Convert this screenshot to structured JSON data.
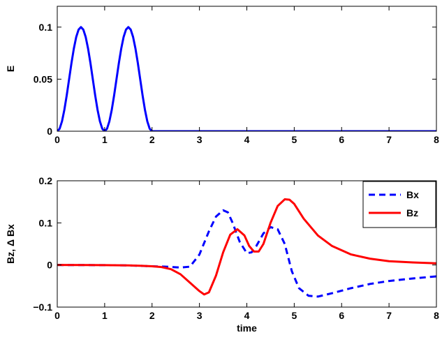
{
  "chart_data": [
    {
      "type": "line",
      "ylabel": "E",
      "xlim": [
        0,
        8
      ],
      "ylim": [
        0,
        0.12
      ],
      "xticks": [
        "0",
        "1",
        "2",
        "3",
        "4",
        "5",
        "6",
        "7",
        "8"
      ],
      "yticks": [
        "0",
        "0.05",
        "0.1"
      ],
      "ytick_values": [
        0,
        0.05,
        0.1
      ],
      "grid": false,
      "series": [
        {
          "color": "#0000ff",
          "style": "solid",
          "x": [
            0,
            0.05,
            0.1,
            0.15,
            0.2,
            0.25,
            0.3,
            0.35,
            0.4,
            0.45,
            0.5,
            0.55,
            0.6,
            0.65,
            0.7,
            0.75,
            0.8,
            0.85,
            0.9,
            0.95,
            1.0,
            1.05,
            1.1,
            1.15,
            1.2,
            1.25,
            1.3,
            1.35,
            1.4,
            1.45,
            1.5,
            1.55,
            1.6,
            1.65,
            1.7,
            1.75,
            1.8,
            1.85,
            1.9,
            1.95,
            2.0,
            8.0
          ],
          "y": [
            0,
            0.0024,
            0.0095,
            0.0206,
            0.0345,
            0.05,
            0.0655,
            0.0794,
            0.0905,
            0.0976,
            0.1,
            0.0976,
            0.0905,
            0.0794,
            0.0655,
            0.05,
            0.0345,
            0.0206,
            0.0095,
            0.0024,
            0,
            0.0024,
            0.0095,
            0.0206,
            0.0345,
            0.05,
            0.0655,
            0.0794,
            0.0905,
            0.0976,
            0.1,
            0.0976,
            0.0905,
            0.0794,
            0.0655,
            0.05,
            0.0345,
            0.0206,
            0.0095,
            0.0024,
            0,
            0
          ]
        }
      ]
    },
    {
      "type": "line",
      "xlabel": "time",
      "ylabel": "Bz, Δ Bx",
      "xlim": [
        0,
        8
      ],
      "ylim": [
        -0.1,
        0.2
      ],
      "xticks": [
        "0",
        "1",
        "2",
        "3",
        "4",
        "5",
        "6",
        "7",
        "8"
      ],
      "yticks": [
        "−0.1",
        "0",
        "0.1",
        "0.2"
      ],
      "ytick_values": [
        -0.1,
        0,
        0.1,
        0.2
      ],
      "grid": false,
      "legend": "top-right",
      "series": [
        {
          "name": "Bx",
          "color": "#0000ff",
          "style": "dashed",
          "x": [
            0,
            1.0,
            1.5,
            2.0,
            2.3,
            2.6,
            2.8,
            3.0,
            3.2,
            3.35,
            3.5,
            3.6,
            3.7,
            3.85,
            4.0,
            4.1,
            4.2,
            4.35,
            4.5,
            4.65,
            4.8,
            4.95,
            5.1,
            5.3,
            5.5,
            5.8,
            6.2,
            6.6,
            7.0,
            7.5,
            8.0
          ],
          "y": [
            0,
            -0.0003,
            -0.001,
            -0.003,
            -0.004,
            -0.006,
            -0.004,
            0.025,
            0.08,
            0.115,
            0.13,
            0.125,
            0.1,
            0.055,
            0.028,
            0.03,
            0.045,
            0.075,
            0.09,
            0.085,
            0.05,
            -0.015,
            -0.055,
            -0.073,
            -0.075,
            -0.067,
            -0.055,
            -0.045,
            -0.038,
            -0.032,
            -0.027
          ]
        },
        {
          "name": "Bz",
          "color": "#ff0000",
          "style": "solid",
          "x": [
            0,
            1.0,
            1.5,
            1.8,
            2.0,
            2.2,
            2.4,
            2.6,
            2.8,
            3.0,
            3.1,
            3.2,
            3.35,
            3.5,
            3.65,
            3.8,
            3.95,
            4.05,
            4.15,
            4.25,
            4.35,
            4.5,
            4.65,
            4.8,
            4.9,
            5.0,
            5.2,
            5.5,
            5.8,
            6.2,
            6.6,
            7.0,
            7.5,
            8.0
          ],
          "y": [
            0,
            -0.0003,
            -0.001,
            -0.002,
            -0.003,
            -0.005,
            -0.01,
            -0.022,
            -0.042,
            -0.062,
            -0.07,
            -0.065,
            -0.025,
            0.03,
            0.072,
            0.085,
            0.07,
            0.045,
            0.032,
            0.032,
            0.05,
            0.1,
            0.14,
            0.156,
            0.155,
            0.145,
            0.11,
            0.07,
            0.045,
            0.025,
            0.015,
            0.009,
            0.006,
            0.004
          ]
        }
      ]
    }
  ]
}
